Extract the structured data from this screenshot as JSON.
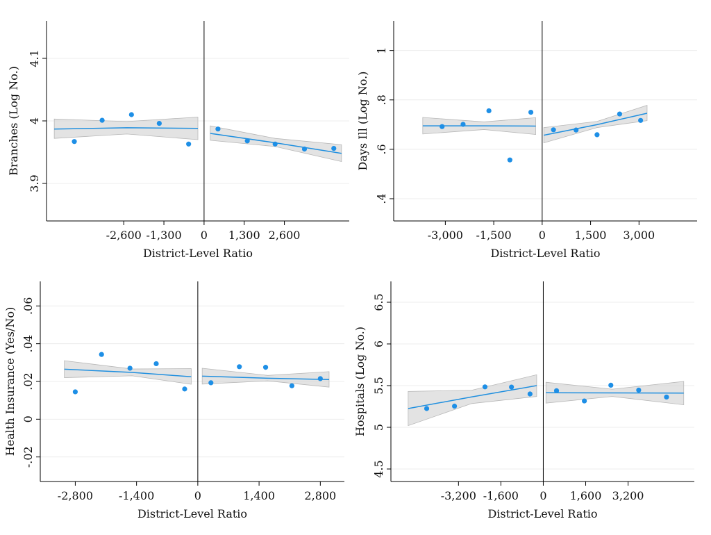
{
  "chart_data": [
    {
      "type": "scatter",
      "xlabel": "District-Level Ratio",
      "ylabel": "Branches (Log No.)",
      "xlim": [
        -5100,
        4700
      ],
      "ylim": [
        3.84,
        4.16
      ],
      "xticks": [
        -2600,
        -1300,
        0,
        1300,
        2600
      ],
      "xtick_labels": [
        "-2,600",
        "-1,300",
        "0",
        "1,300",
        "2,600"
      ],
      "yticks": [
        3.9,
        4,
        4.1
      ],
      "ytick_labels": [
        "3.9",
        "4",
        "4.1"
      ],
      "cutoff": 0,
      "grid": true,
      "points": [
        {
          "x": -4200,
          "y": 3.967
        },
        {
          "x": -3300,
          "y": 4.001
        },
        {
          "x": -2350,
          "y": 4.01
        },
        {
          "x": -1450,
          "y": 3.996
        },
        {
          "x": -500,
          "y": 3.963
        },
        {
          "x": 450,
          "y": 3.987
        },
        {
          "x": 1400,
          "y": 3.968
        },
        {
          "x": 2300,
          "y": 3.963
        },
        {
          "x": 3250,
          "y": 3.955
        },
        {
          "x": 4200,
          "y": 3.956
        }
      ],
      "fit_left": {
        "x": [
          -4850,
          -2500,
          -200
        ],
        "y": [
          3.987,
          3.989,
          3.988
        ],
        "lo": [
          3.972,
          3.979,
          3.97
        ],
        "hi": [
          4.003,
          3.999,
          4.006
        ]
      },
      "fit_right": {
        "x": [
          200,
          2300,
          4450
        ],
        "y": [
          3.98,
          3.965,
          3.948
        ],
        "lo": [
          3.969,
          3.959,
          3.935
        ],
        "hi": [
          3.992,
          3.972,
          3.962
        ]
      }
    },
    {
      "type": "scatter",
      "xlabel": "District-Level Ratio",
      "ylabel": "Days Ill (Log No.)",
      "xlim": [
        -4600,
        4800
      ],
      "ylim": [
        0.31,
        1.12
      ],
      "xticks": [
        -3000,
        -1500,
        0,
        1500,
        3000
      ],
      "xtick_labels": [
        "-3,000",
        "-1,500",
        "0",
        "1,500",
        "3,000"
      ],
      "yticks": [
        0.4,
        0.6,
        0.8,
        1.0
      ],
      "ytick_labels": [
        ".4",
        ".6",
        ".8",
        "1"
      ],
      "cutoff": 0,
      "grid": true,
      "points": [
        {
          "x": -3100,
          "y": 0.692
        },
        {
          "x": -2450,
          "y": 0.701
        },
        {
          "x": -1650,
          "y": 0.756
        },
        {
          "x": -1000,
          "y": 0.557
        },
        {
          "x": -350,
          "y": 0.75
        },
        {
          "x": 350,
          "y": 0.679
        },
        {
          "x": 1050,
          "y": 0.678
        },
        {
          "x": 1700,
          "y": 0.659
        },
        {
          "x": 2400,
          "y": 0.743
        },
        {
          "x": 3050,
          "y": 0.717
        }
      ],
      "fit_left": {
        "x": [
          -3700,
          -1800,
          -200
        ],
        "y": [
          0.695,
          0.695,
          0.694
        ],
        "lo": [
          0.662,
          0.68,
          0.66
        ],
        "hi": [
          0.729,
          0.711,
          0.728
        ]
      },
      "fit_right": {
        "x": [
          50,
          1700,
          3250
        ],
        "y": [
          0.657,
          0.7,
          0.746
        ],
        "lo": [
          0.626,
          0.688,
          0.716
        ],
        "hi": [
          0.688,
          0.713,
          0.778
        ]
      }
    },
    {
      "type": "scatter",
      "xlabel": "District-Level Ratio",
      "ylabel": "Health Insurance (Yes/No)",
      "xlim": [
        -3600,
        3350
      ],
      "ylim": [
        -0.033,
        0.073
      ],
      "xticks": [
        -2800,
        -1400,
        0,
        1400,
        2800
      ],
      "xtick_labels": [
        "-2,800",
        "-1,400",
        "0",
        "1,400",
        "2,800"
      ],
      "yticks": [
        -0.02,
        0,
        0.02,
        0.04,
        0.06
      ],
      "ytick_labels": [
        "-.02",
        "0",
        ".02",
        ".04",
        ".06"
      ],
      "cutoff": 0,
      "grid": true,
      "points": [
        {
          "x": -2800,
          "y": 0.0145
        },
        {
          "x": -2200,
          "y": 0.0343
        },
        {
          "x": -1550,
          "y": 0.027
        },
        {
          "x": -950,
          "y": 0.0294
        },
        {
          "x": -300,
          "y": 0.016
        },
        {
          "x": 300,
          "y": 0.0193
        },
        {
          "x": 950,
          "y": 0.0278
        },
        {
          "x": 1550,
          "y": 0.0275
        },
        {
          "x": 2150,
          "y": 0.0177
        },
        {
          "x": 2800,
          "y": 0.0215
        }
      ],
      "fit_left": {
        "x": [
          -3050,
          -1500,
          -150
        ],
        "y": [
          0.0265,
          0.0248,
          0.0225
        ],
        "lo": [
          0.022,
          0.023,
          0.0185
        ],
        "hi": [
          0.031,
          0.0266,
          0.0268
        ]
      },
      "fit_right": {
        "x": [
          100,
          1600,
          3000
        ],
        "y": [
          0.0228,
          0.0217,
          0.021
        ],
        "lo": [
          0.0186,
          0.0203,
          0.017
        ],
        "hi": [
          0.027,
          0.0232,
          0.0252
        ]
      }
    },
    {
      "type": "scatter",
      "xlabel": "District-Level Ratio",
      "ylabel": "Hospitals (Log No.)",
      "xlim": [
        -5750,
        5700
      ],
      "ylim": [
        4.35,
        6.75
      ],
      "xticks": [
        -3200,
        -1600,
        0,
        1600,
        3200
      ],
      "xtick_labels": [
        "-3,200",
        "-1,600",
        "0",
        "1,600",
        "3,200"
      ],
      "yticks": [
        4.5,
        5,
        5.5,
        6,
        6.5
      ],
      "ytick_labels": [
        "4.5",
        "5",
        "5.5",
        "6",
        "6.5"
      ],
      "cutoff": 0,
      "grid": true,
      "points": [
        {
          "x": -4400,
          "y": 5.225
        },
        {
          "x": -3350,
          "y": 5.254
        },
        {
          "x": -2200,
          "y": 5.485
        },
        {
          "x": -1200,
          "y": 5.483
        },
        {
          "x": -500,
          "y": 5.4
        },
        {
          "x": 500,
          "y": 5.439
        },
        {
          "x": 1550,
          "y": 5.316
        },
        {
          "x": 2550,
          "y": 5.505
        },
        {
          "x": 3600,
          "y": 5.446
        },
        {
          "x": 4650,
          "y": 5.363
        }
      ],
      "fit_left": {
        "x": [
          -5100,
          -2700,
          -250
        ],
        "y": [
          5.225,
          5.365,
          5.5
        ],
        "lo": [
          5.02,
          5.285,
          5.37
        ],
        "hi": [
          5.43,
          5.445,
          5.63
        ]
      },
      "fit_right": {
        "x": [
          100,
          2600,
          5300
        ],
        "y": [
          5.415,
          5.413,
          5.41
        ],
        "lo": [
          5.29,
          5.37,
          5.27
        ],
        "hi": [
          5.54,
          5.457,
          5.55
        ]
      }
    }
  ]
}
